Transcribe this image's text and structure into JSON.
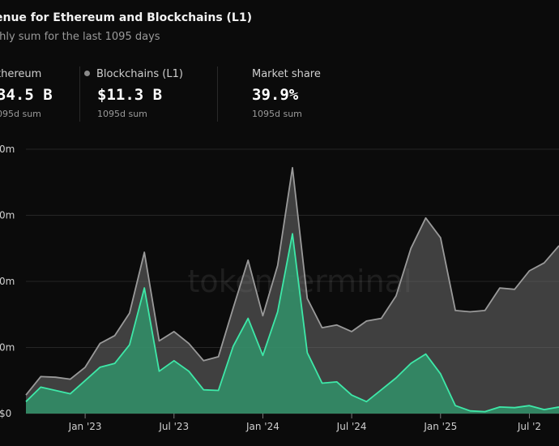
{
  "header": {
    "title": "enue for Ethereum and Blockchains (L1)",
    "subtitle": "thly sum for the last 1095 days"
  },
  "stats": [
    {
      "label": "thereum",
      "value": "34.5 B",
      "sub": "095d sum"
    },
    {
      "label": "Blockchains (L1)",
      "value": "$11.3 B",
      "sub": "1095d sum"
    },
    {
      "label": "Market share",
      "value": "39.9%",
      "sub": "1095d sum"
    }
  ],
  "watermark": "token terminal",
  "colors": {
    "background": "#0b0b0b",
    "series_blockchains": "#9a9a9a",
    "series_ethereum": "#3ee8a8"
  },
  "chart_data": {
    "type": "area",
    "ytick_labels": [
      "$0",
      "0m",
      "0m",
      "0m",
      "0m"
    ],
    "yticks": [
      0,
      500,
      1000,
      1500,
      2000
    ],
    "ylim": [
      0,
      2000
    ],
    "xticks": [
      {
        "label": "Jan '23",
        "x": 4
      },
      {
        "label": "Jul '23",
        "x": 10
      },
      {
        "label": "Jan '24",
        "x": 16
      },
      {
        "label": "Jul '24",
        "x": 22
      },
      {
        "label": "Jan '25",
        "x": 28
      },
      {
        "label": "Jul '2",
        "x": 34
      }
    ],
    "series": [
      {
        "name": "Blockchains (L1)",
        "x": [
          0,
          1,
          2,
          3,
          4,
          5,
          6,
          7,
          8,
          9,
          10,
          11,
          12,
          13,
          14,
          15,
          16,
          17,
          18,
          19,
          20,
          21,
          22,
          23,
          24,
          25,
          26,
          27,
          28,
          29,
          30,
          31,
          32,
          33,
          34,
          35,
          36
        ],
        "values": [
          140,
          280,
          275,
          260,
          350,
          530,
          590,
          760,
          1220,
          550,
          620,
          530,
          400,
          430,
          800,
          1160,
          740,
          1120,
          1860,
          870,
          650,
          670,
          620,
          700,
          720,
          890,
          1250,
          1480,
          1330,
          780,
          770,
          780,
          950,
          940,
          1080,
          1140,
          1270
        ]
      },
      {
        "name": "Ethereum",
        "x": [
          0,
          1,
          2,
          3,
          4,
          5,
          6,
          7,
          8,
          9,
          10,
          11,
          12,
          13,
          14,
          15,
          16,
          17,
          18,
          19,
          20,
          21,
          22,
          23,
          24,
          25,
          26,
          27,
          28,
          29,
          30,
          31,
          32,
          33,
          34,
          35,
          36
        ],
        "values": [
          90,
          200,
          175,
          150,
          250,
          350,
          380,
          520,
          950,
          320,
          400,
          320,
          180,
          175,
          510,
          720,
          440,
          770,
          1360,
          460,
          230,
          240,
          140,
          90,
          180,
          270,
          380,
          450,
          300,
          60,
          20,
          15,
          50,
          45,
          60,
          30,
          50
        ]
      }
    ]
  }
}
